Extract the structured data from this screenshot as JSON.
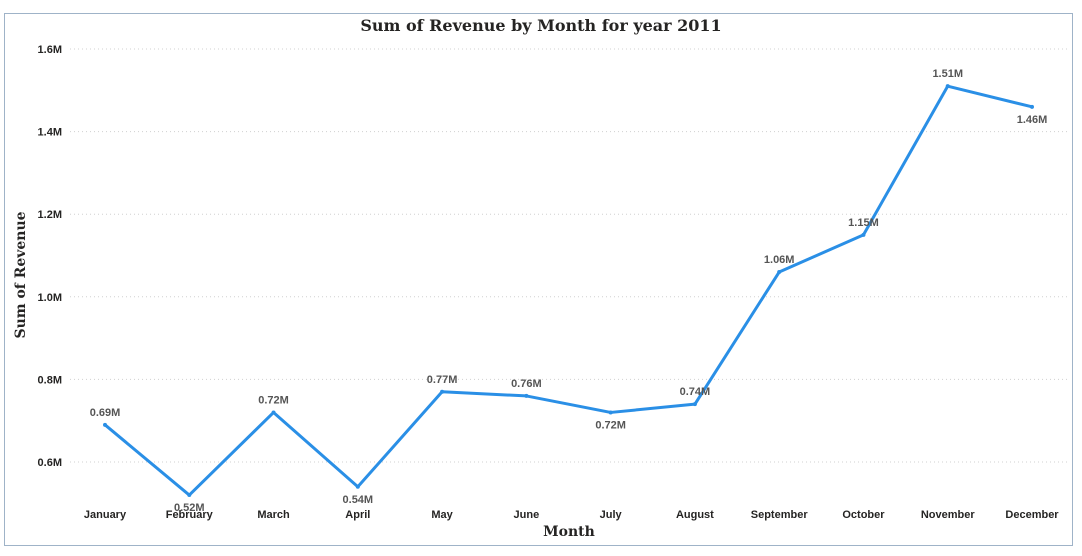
{
  "chart_data": {
    "type": "line",
    "title": "Sum of Revenue by Month for year 2011",
    "xlabel": "Month",
    "ylabel": "Sum of Revenue",
    "categories": [
      "January",
      "February",
      "March",
      "April",
      "May",
      "June",
      "July",
      "August",
      "September",
      "October",
      "November",
      "December"
    ],
    "series": [
      {
        "values": [
          0.69,
          0.52,
          0.72,
          0.54,
          0.77,
          0.76,
          0.72,
          0.74,
          1.06,
          1.15,
          1.51,
          1.46
        ],
        "labels": [
          "0.69M",
          "0.52M",
          "0.72M",
          "0.54M",
          "0.77M",
          "0.76M",
          "0.72M",
          "0.74M",
          "1.06M",
          "1.15M",
          "1.51M",
          "1.46M"
        ],
        "color": "#2a8fe6"
      }
    ],
    "yticks": [
      0.6,
      0.8,
      1.0,
      1.2,
      1.4,
      1.6
    ],
    "ytick_labels": [
      "0.6M",
      "0.8M",
      "1.0M",
      "1.2M",
      "1.4M",
      "1.6M"
    ],
    "ylim": [
      0.5,
      1.6
    ],
    "grid": true,
    "grid_color": "#d0d0d0"
  }
}
